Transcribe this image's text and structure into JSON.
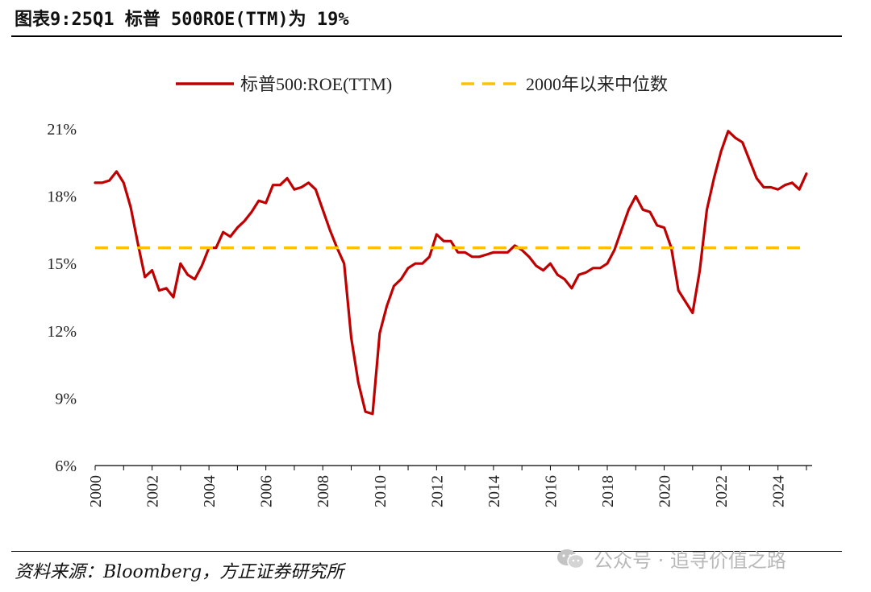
{
  "header": {
    "title": "图表9:25Q1 标普 500ROE(TTM)为 19%"
  },
  "footer": {
    "source": "资料来源：Bloomberg，方正证券研究所",
    "watermark": "公众号 · 追寻价值之路"
  },
  "colors": {
    "roe_line": "#c00000",
    "median_line": "#ffc000",
    "axis": "#000000"
  },
  "chart_data": {
    "type": "line",
    "x_unit": "year",
    "xlim": [
      2000,
      2025.2
    ],
    "ylim": [
      6,
      21
    ],
    "yticks": [
      6,
      9,
      12,
      15,
      18,
      21
    ],
    "ytick_labels": [
      "6%",
      "9%",
      "12%",
      "15%",
      "18%",
      "21%"
    ],
    "xticks": [
      2000,
      2002,
      2004,
      2006,
      2008,
      2010,
      2012,
      2014,
      2016,
      2018,
      2020,
      2022,
      2024
    ],
    "xtick_labels": [
      "2000",
      "2002",
      "2004",
      "2006",
      "2008",
      "2010",
      "2012",
      "2014",
      "2016",
      "2018",
      "2020",
      "2022",
      "2024"
    ],
    "grid": false,
    "legend_position": "top",
    "series": [
      {
        "name": "标普500:ROE(TTM)",
        "style": "solid",
        "x": [
          2000.0,
          2000.25,
          2000.5,
          2000.75,
          2001.0,
          2001.25,
          2001.5,
          2001.75,
          2002.0,
          2002.25,
          2002.5,
          2002.75,
          2003.0,
          2003.25,
          2003.5,
          2003.75,
          2004.0,
          2004.25,
          2004.5,
          2004.75,
          2005.0,
          2005.25,
          2005.5,
          2005.75,
          2006.0,
          2006.25,
          2006.5,
          2006.75,
          2007.0,
          2007.25,
          2007.5,
          2007.75,
          2008.0,
          2008.25,
          2008.5,
          2008.75,
          2009.0,
          2009.25,
          2009.5,
          2009.75,
          2010.0,
          2010.25,
          2010.5,
          2010.75,
          2011.0,
          2011.25,
          2011.5,
          2011.75,
          2012.0,
          2012.25,
          2012.5,
          2012.75,
          2013.0,
          2013.25,
          2013.5,
          2013.75,
          2014.0,
          2014.25,
          2014.5,
          2014.75,
          2015.0,
          2015.25,
          2015.5,
          2015.75,
          2016.0,
          2016.25,
          2016.5,
          2016.75,
          2017.0,
          2017.25,
          2017.5,
          2017.75,
          2018.0,
          2018.25,
          2018.5,
          2018.75,
          2019.0,
          2019.25,
          2019.5,
          2019.75,
          2020.0,
          2020.25,
          2020.5,
          2020.75,
          2021.0,
          2021.25,
          2021.5,
          2021.75,
          2022.0,
          2022.25,
          2022.5,
          2022.75,
          2023.0,
          2023.25,
          2023.5,
          2023.75,
          2024.0,
          2024.25,
          2024.5,
          2024.75,
          2025.0
        ],
        "values": [
          18.6,
          18.6,
          18.7,
          19.1,
          18.6,
          17.5,
          15.9,
          14.4,
          14.7,
          13.8,
          13.9,
          13.5,
          15.0,
          14.5,
          14.3,
          14.9,
          15.7,
          15.7,
          16.4,
          16.2,
          16.6,
          16.9,
          17.3,
          17.8,
          17.7,
          18.5,
          18.5,
          18.8,
          18.3,
          18.4,
          18.6,
          18.3,
          17.4,
          16.5,
          15.7,
          15.0,
          11.7,
          9.7,
          8.4,
          8.3,
          11.9,
          13.1,
          14.0,
          14.3,
          14.8,
          15.0,
          15.0,
          15.3,
          16.3,
          16.0,
          16.0,
          15.5,
          15.5,
          15.3,
          15.3,
          15.4,
          15.5,
          15.5,
          15.5,
          15.8,
          15.6,
          15.3,
          14.9,
          14.7,
          15.0,
          14.5,
          14.3,
          13.9,
          14.5,
          14.6,
          14.8,
          14.8,
          15.0,
          15.6,
          16.5,
          17.4,
          18.0,
          17.4,
          17.3,
          16.7,
          16.6,
          15.7,
          13.8,
          13.3,
          12.8,
          14.7,
          17.4,
          18.8,
          20.0,
          20.9,
          20.6,
          20.4,
          19.6,
          18.8,
          18.4,
          18.4,
          18.3,
          18.5,
          18.6,
          18.3,
          19.0
        ]
      },
      {
        "name": "2000年以来中位数",
        "style": "dashed",
        "x": [
          2000.0,
          2025.0
        ],
        "values": [
          15.7,
          15.7
        ]
      }
    ]
  }
}
